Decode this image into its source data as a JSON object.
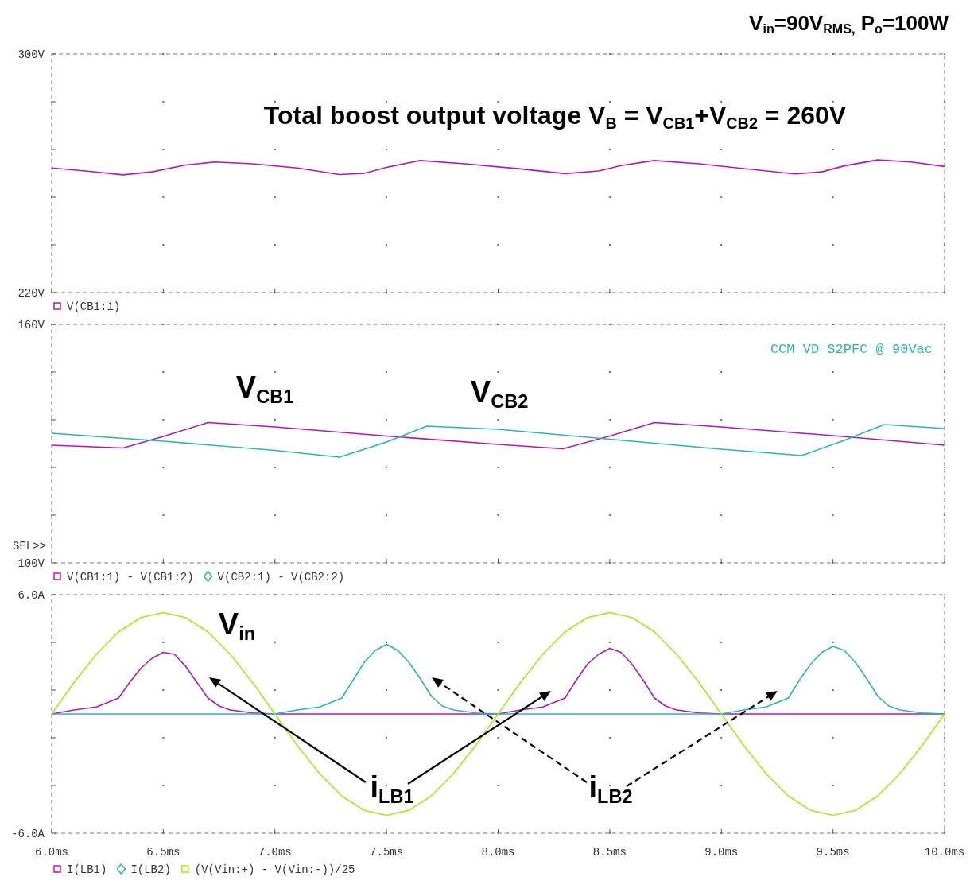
{
  "chart_data": [
    {
      "type": "line",
      "title": "V$_{in}$=90V$_{RMS,}$ P$_{o}$=100W",
      "annotations": [
        "Total boost output voltage V$_{B}$ = V$_{CB1}$+V$_{CB2}$ = 260V"
      ],
      "xlim": [
        6,
        10
      ],
      "xticks": [
        {
          "value": 6,
          "label": null
        },
        {
          "value": 6.5,
          "label": null
        },
        {
          "value": 7,
          "label": null
        },
        {
          "value": 7.5,
          "label": null
        },
        {
          "value": 8,
          "label": null
        },
        {
          "value": 8.5,
          "label": null
        },
        {
          "value": 9,
          "label": null
        },
        {
          "value": 9.5,
          "label": null
        },
        {
          "value": 10,
          "label": null
        }
      ],
      "ylim": [
        220,
        300
      ],
      "yticks": [
        {
          "value": 220,
          "label": "220V"
        },
        {
          "value": 236,
          "label": null
        },
        {
          "value": 252,
          "label": null
        },
        {
          "value": 268,
          "label": null
        },
        {
          "value": 284,
          "label": null
        },
        {
          "value": 300,
          "label": "300V"
        }
      ],
      "tick_labels": "y",
      "grid": true,
      "legend": "bottom",
      "line_style": "solid",
      "series": [
        {
          "name": "V(CB1:1)",
          "color": "#b018b8",
          "x": [
            6.0,
            6.15,
            6.32,
            6.45,
            6.6,
            6.73,
            6.9,
            7.1,
            7.29,
            7.4,
            7.5,
            7.65,
            7.85,
            8.1,
            8.3,
            8.45,
            8.55,
            8.7,
            8.9,
            9.1,
            9.33,
            9.45,
            9.55,
            9.7,
            9.85,
            10.0
          ],
          "values": [
            261.8,
            260.8,
            259.5,
            260.5,
            262.8,
            263.8,
            263.2,
            261.8,
            259.6,
            260.0,
            262.0,
            264.3,
            263.2,
            261.5,
            259.9,
            260.8,
            262.6,
            264.3,
            263.2,
            261.6,
            259.8,
            260.5,
            262.5,
            264.5,
            263.8,
            262.3
          ]
        }
      ]
    },
    {
      "type": "line",
      "annotations": [
        "CCM VD S2PFC @ 90Vac",
        "SEL>>",
        "V$_{CB1}$",
        "V$_{CB2}$"
      ],
      "xlim": [
        6,
        10
      ],
      "xticks": [
        {
          "value": 6,
          "label": null
        },
        {
          "value": 6.5,
          "label": null
        },
        {
          "value": 7,
          "label": null
        },
        {
          "value": 7.5,
          "label": null
        },
        {
          "value": 8,
          "label": null
        },
        {
          "value": 8.5,
          "label": null
        },
        {
          "value": 9,
          "label": null
        },
        {
          "value": 9.5,
          "label": null
        },
        {
          "value": 10,
          "label": null
        }
      ],
      "ylim": [
        100,
        160
      ],
      "yticks": [
        {
          "value": 100,
          "label": "100V"
        },
        {
          "value": 112,
          "label": null
        },
        {
          "value": 124,
          "label": null
        },
        {
          "value": 136,
          "label": null
        },
        {
          "value": 148,
          "label": null
        },
        {
          "value": 160,
          "label": "160V"
        }
      ],
      "tick_labels": "y",
      "grid": true,
      "legend": "bottom",
      "line_style": "solid",
      "series": [
        {
          "name": "V(CB1:1) - V(CB1:2)",
          "color": "#b018b8",
          "x": [
            6.0,
            6.32,
            6.5,
            6.7,
            7.0,
            7.5,
            8.0,
            8.29,
            8.5,
            8.7,
            9.0,
            9.5,
            10.0
          ],
          "values": [
            129.6,
            128.9,
            131.8,
            135.3,
            134.2,
            131.9,
            129.8,
            128.7,
            131.9,
            135.3,
            134.2,
            132.0,
            129.6
          ]
        },
        {
          "name": "V(CB2:1) - V(CB2:2)",
          "color": "#2ab5b5",
          "x": [
            6.0,
            6.5,
            7.0,
            7.29,
            7.5,
            7.68,
            8.0,
            8.5,
            9.0,
            9.36,
            9.55,
            9.73,
            10.0
          ],
          "values": [
            132.6,
            130.6,
            128.3,
            126.6,
            130.4,
            134.4,
            133.6,
            131.1,
            128.6,
            127.0,
            130.8,
            134.8,
            133.8
          ]
        }
      ]
    },
    {
      "type": "line",
      "annotations": [
        "V$_{in}$",
        "i$_{LB1}$",
        "i$_{LB2}$"
      ],
      "xlim": [
        6,
        10
      ],
      "xticks": [
        {
          "value": 6,
          "label": "6.0ms"
        },
        {
          "value": 6.5,
          "label": "6.5ms"
        },
        {
          "value": 7,
          "label": "7.0ms"
        },
        {
          "value": 7.5,
          "label": "7.5ms"
        },
        {
          "value": 8,
          "label": "8.0ms"
        },
        {
          "value": 8.5,
          "label": "8.5ms"
        },
        {
          "value": 9,
          "label": "9.0ms"
        },
        {
          "value": 9.5,
          "label": "9.5ms"
        },
        {
          "value": 10,
          "label": "10.0ms"
        }
      ],
      "ylim": [
        -6,
        6
      ],
      "yticks": [
        {
          "value": -6,
          "label": "-6.0A"
        },
        {
          "value": -3.6,
          "label": null
        },
        {
          "value": -1.2,
          "label": null
        },
        {
          "value": 1.2,
          "label": null
        },
        {
          "value": 3.6,
          "label": null
        },
        {
          "value": 6,
          "label": "6.0A"
        }
      ],
      "grid": true,
      "legend": "bottom",
      "line_style": "solid",
      "series": [
        {
          "name": "I(LB1)",
          "color": "#b018b8",
          "x": [
            6.0,
            6.1,
            6.2,
            6.3,
            6.35,
            6.4,
            6.45,
            6.5,
            6.55,
            6.6,
            6.65,
            6.7,
            6.75,
            6.8,
            6.9,
            7.0,
            8.0,
            8.1,
            8.2,
            8.3,
            8.35,
            8.4,
            8.45,
            8.5,
            8.55,
            8.6,
            8.65,
            8.7,
            8.75,
            8.8,
            8.9,
            9.0,
            10.0
          ],
          "values": [
            0,
            0.2,
            0.35,
            0.8,
            1.6,
            2.3,
            2.8,
            3.1,
            3.0,
            2.4,
            1.6,
            0.8,
            0.4,
            0.2,
            0.05,
            0,
            0,
            0.2,
            0.35,
            0.8,
            1.7,
            2.5,
            3.0,
            3.3,
            3.1,
            2.5,
            1.7,
            0.8,
            0.4,
            0.2,
            0.05,
            0,
            0
          ]
        },
        {
          "name": "I(LB2)",
          "color": "#2ab5b5",
          "x": [
            6.0,
            7.0,
            7.1,
            7.2,
            7.3,
            7.35,
            7.4,
            7.45,
            7.5,
            7.55,
            7.6,
            7.65,
            7.7,
            7.75,
            7.8,
            7.9,
            8.0,
            9.0,
            9.1,
            9.2,
            9.3,
            9.35,
            9.4,
            9.45,
            9.5,
            9.55,
            9.6,
            9.65,
            9.7,
            9.75,
            9.8,
            9.9,
            10.0
          ],
          "values": [
            0,
            0,
            0.2,
            0.35,
            0.8,
            1.7,
            2.6,
            3.2,
            3.5,
            3.2,
            2.6,
            1.8,
            0.9,
            0.4,
            0.2,
            0.05,
            0,
            0,
            0.2,
            0.35,
            0.8,
            1.7,
            2.5,
            3.1,
            3.4,
            3.2,
            2.6,
            1.8,
            0.9,
            0.4,
            0.2,
            0.05,
            0
          ]
        },
        {
          "name": "(V(Vin:+) - V(Vin:-))/25",
          "color": "#a8e818",
          "x": [
            6.0,
            6.1,
            6.2,
            6.3,
            6.4,
            6.5,
            6.6,
            6.7,
            6.8,
            6.9,
            7.0,
            7.1,
            7.2,
            7.3,
            7.4,
            7.5,
            7.6,
            7.7,
            7.8,
            7.9,
            8.0,
            8.1,
            8.2,
            8.3,
            8.4,
            8.5,
            8.6,
            8.7,
            8.8,
            8.9,
            9.0,
            9.1,
            9.2,
            9.3,
            9.4,
            9.5,
            9.6,
            9.7,
            9.8,
            9.9,
            10.0
          ],
          "values": [
            0,
            1.58,
            3.0,
            4.13,
            4.85,
            5.1,
            4.85,
            4.13,
            3.0,
            1.58,
            0,
            -1.58,
            -3.0,
            -4.13,
            -4.85,
            -5.1,
            -4.85,
            -4.13,
            -3.0,
            -1.58,
            0,
            1.58,
            3.0,
            4.13,
            4.85,
            5.1,
            4.85,
            4.13,
            3.0,
            1.58,
            0,
            -1.58,
            -3.0,
            -4.13,
            -4.85,
            -5.1,
            -4.85,
            -4.13,
            -3.0,
            -1.58,
            0
          ]
        }
      ]
    }
  ]
}
